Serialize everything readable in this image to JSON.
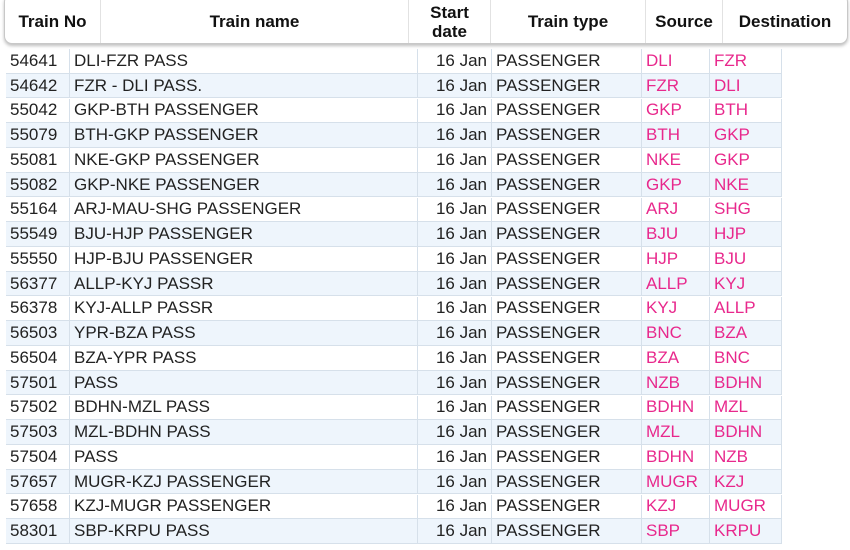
{
  "header": [
    "Train No",
    "Train name",
    "Start date",
    "Train type",
    "Source",
    "Destination"
  ],
  "rows": [
    [
      "54641",
      "DLI-FZR PASS",
      "16 Jan",
      "PASSENGER",
      "DLI",
      "FZR"
    ],
    [
      "54642",
      "FZR - DLI PASS.",
      "16 Jan",
      "PASSENGER",
      "FZR",
      "DLI"
    ],
    [
      "55042",
      "GKP-BTH PASSENGER",
      "16 Jan",
      "PASSENGER",
      "GKP",
      "BTH"
    ],
    [
      "55079",
      "BTH-GKP PASSENGER",
      "16 Jan",
      "PASSENGER",
      "BTH",
      "GKP"
    ],
    [
      "55081",
      "NKE-GKP PASSENGER",
      "16 Jan",
      "PASSENGER",
      "NKE",
      "GKP"
    ],
    [
      "55082",
      "GKP-NKE PASSENGER",
      "16 Jan",
      "PASSENGER",
      "GKP",
      "NKE"
    ],
    [
      "55164",
      "ARJ-MAU-SHG PASSENGER",
      "16 Jan",
      "PASSENGER",
      "ARJ",
      "SHG"
    ],
    [
      "55549",
      "BJU-HJP PASSENGER",
      "16 Jan",
      "PASSENGER",
      "BJU",
      "HJP"
    ],
    [
      "55550",
      "HJP-BJU PASSENGER",
      "16 Jan",
      "PASSENGER",
      "HJP",
      "BJU"
    ],
    [
      "56377",
      "ALLP-KYJ PASSR",
      "16 Jan",
      "PASSENGER",
      "ALLP",
      "KYJ"
    ],
    [
      "56378",
      "KYJ-ALLP PASSR",
      "16 Jan",
      "PASSENGER",
      "KYJ",
      "ALLP"
    ],
    [
      "56503",
      "YPR-BZA PASS",
      "16 Jan",
      "PASSENGER",
      "BNC",
      "BZA"
    ],
    [
      "56504",
      "BZA-YPR PASS",
      "16 Jan",
      "PASSENGER",
      "BZA",
      "BNC"
    ],
    [
      "57501",
      "PASS",
      "16 Jan",
      "PASSENGER",
      "NZB",
      "BDHN"
    ],
    [
      "57502",
      "BDHN-MZL PASS",
      "16 Jan",
      "PASSENGER",
      "BDHN",
      "MZL"
    ],
    [
      "57503",
      "MZL-BDHN PASS",
      "16 Jan",
      "PASSENGER",
      "MZL",
      "BDHN"
    ],
    [
      "57504",
      "PASS",
      "16 Jan",
      "PASSENGER",
      "BDHN",
      "NZB"
    ],
    [
      "57657",
      "MUGR-KZJ PASSENGER",
      "16 Jan",
      "PASSENGER",
      "MUGR",
      "KZJ"
    ],
    [
      "57658",
      "KZJ-MUGR PASSENGER",
      "16 Jan",
      "PASSENGER",
      "KZJ",
      "MUGR"
    ],
    [
      "58301",
      "SBP-KRPU PASS",
      "16 Jan",
      "PASSENGER",
      "SBP",
      "KRPU"
    ]
  ]
}
